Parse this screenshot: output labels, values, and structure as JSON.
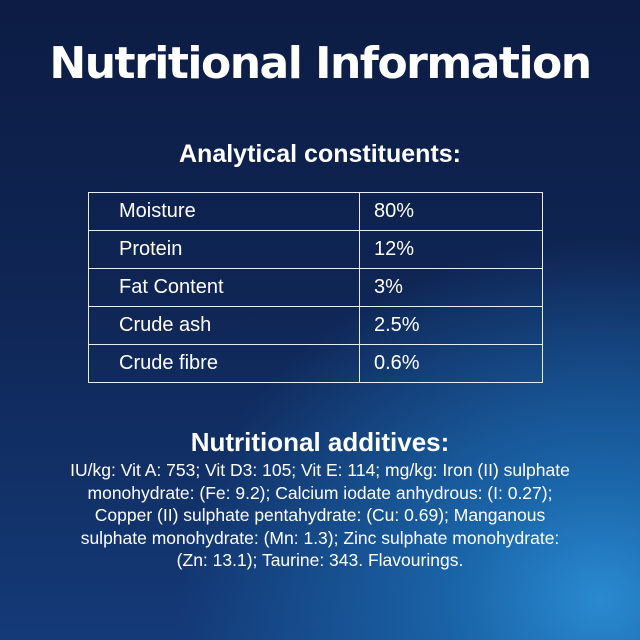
{
  "title": "Nutritional Information",
  "analytical": {
    "heading": "Analytical constituents:",
    "rows": [
      {
        "label": "Moisture",
        "value": "80%"
      },
      {
        "label": "Protein",
        "value": "12%"
      },
      {
        "label": "Fat Content",
        "value": "3%"
      },
      {
        "label": "Crude ash",
        "value": "2.5%"
      },
      {
        "label": "Crude fibre",
        "value": "0.6%"
      }
    ]
  },
  "additives": {
    "heading": "Nutritional additives:",
    "lines": [
      "IU/kg: Vit A: 753; Vit D3: 105; Vit E: 114; mg/kg: Iron (II) sulphate",
      "monohydrate: (Fe: 9.2); Calcium iodate anhydrous: (I: 0.27);",
      "Copper (II) sulphate pentahydrate: (Cu: 0.69); Manganous",
      "sulphate monohydrate: (Mn: 1.3); Zinc sulphate monohydrate:",
      "(Zn: 13.1); Taurine: 343. Flavourings."
    ]
  }
}
